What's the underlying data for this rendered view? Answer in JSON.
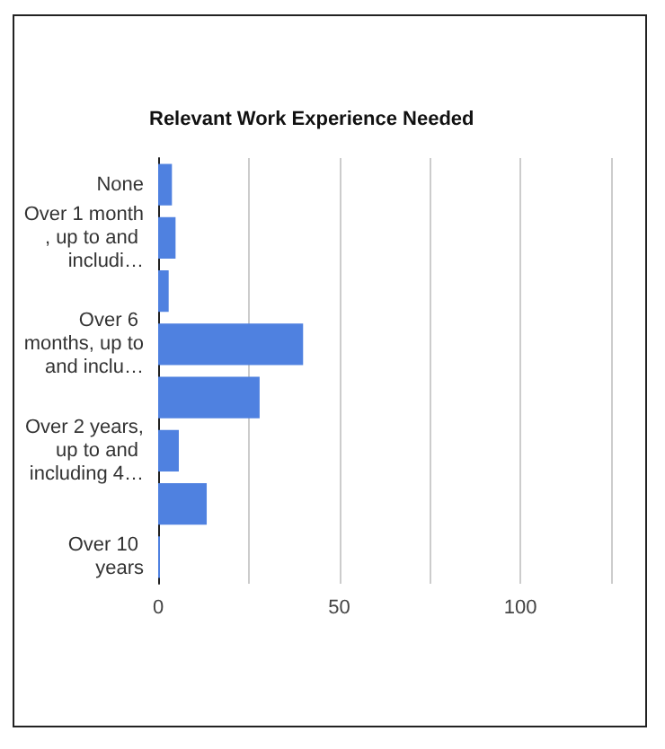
{
  "chart_data": {
    "type": "bar",
    "orientation": "horizontal",
    "title": "Relevant Work Experience Needed",
    "categories": [
      "None",
      "Over 1 month, up to and includi…",
      null,
      "Over 6 months, up to and inclu…",
      null,
      "Over 2 years, up to and including 4…",
      null,
      "Over 10 years"
    ],
    "values": [
      3.8,
      4.8,
      2.9,
      40,
      28,
      5.7,
      13.4,
      0.5
    ],
    "color": "#4f81e0",
    "xlim": [
      0,
      125
    ],
    "xticks": [
      0,
      {
        "value": 25,
        "label": null
      },
      50,
      {
        "value": 75,
        "label": null
      },
      100,
      {
        "value": 125,
        "label": null
      }
    ],
    "grid": "x"
  }
}
